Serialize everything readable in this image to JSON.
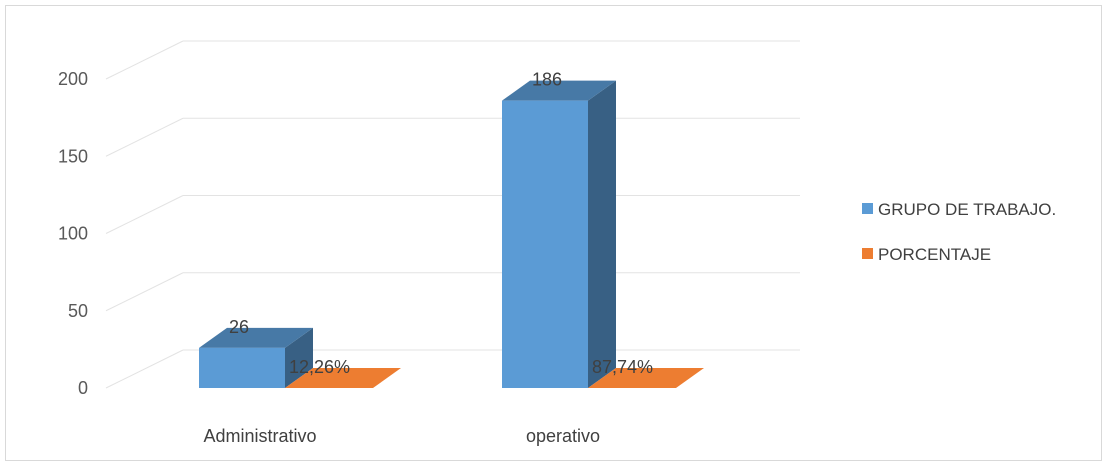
{
  "chart_data": {
    "type": "bar",
    "categories": [
      "Administrativo",
      "operativo"
    ],
    "series": [
      {
        "name": "GRUPO DE TRABAJO.",
        "values": [
          26,
          186
        ],
        "labels": [
          "26",
          "186"
        ],
        "color": "#5b9bd5"
      },
      {
        "name": "PORCENTAJE",
        "values": [
          0.1226,
          0.8774
        ],
        "labels": [
          "12,26%",
          "87,74%"
        ],
        "color": "#ed7d31"
      }
    ],
    "yticks": [
      "0",
      "50",
      "100",
      "150",
      "200"
    ],
    "ylim": [
      0,
      200
    ],
    "grid": true,
    "legend_position": "right",
    "style": "3d-column"
  }
}
